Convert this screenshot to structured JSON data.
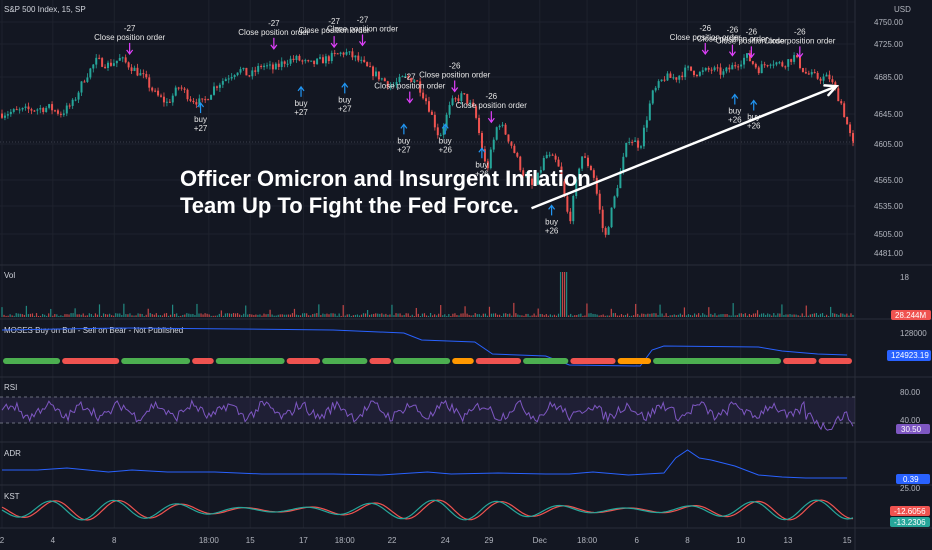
{
  "header": {
    "symbol": "S&P 500 Index, 15, SP"
  },
  "headline": [
    "Officer Omicron and Insurgent Inflation",
    "Team Up To Fight the Fed Force."
  ],
  "colors": {
    "bg": "#131722",
    "up": "#26a69a",
    "down": "#ef5350",
    "rsi": "#7e57c2",
    "adr": "#2962ff",
    "moses": "#2962ff"
  },
  "chart_data": [
    {
      "type": "candlestick",
      "title": "S&P 500 Index, 15, SP",
      "y_unit": "USD",
      "ylim": [
        4481,
        4760
      ],
      "y_ticks": [
        4750,
        4725,
        4685,
        4645,
        4605,
        4565,
        4535,
        4505,
        4481
      ],
      "y_tick_labels": [
        "4750.00",
        "4725.00",
        "4685.00",
        "4645.00",
        "4605.00",
        "4565.00",
        "4535.00",
        "4505.00",
        "4481.00"
      ],
      "x_ticks": [
        "2",
        "4",
        "8",
        "18:00",
        "15",
        "17",
        "18:00",
        "22",
        "24",
        "29",
        "Dec",
        "18:00",
        "6",
        "8",
        "10",
        "13",
        "15"
      ],
      "price_path": [
        [
          0,
          4648
        ],
        [
          2,
          4652
        ],
        [
          4,
          4655
        ],
        [
          5,
          4648
        ],
        [
          6,
          4660
        ],
        [
          7,
          4690
        ],
        [
          8,
          4710
        ],
        [
          9,
          4705
        ],
        [
          10,
          4712
        ],
        [
          11,
          4702
        ],
        [
          12,
          4690
        ],
        [
          13,
          4670
        ],
        [
          14,
          4660
        ],
        [
          15,
          4680
        ],
        [
          16,
          4665
        ],
        [
          17,
          4660
        ],
        [
          18,
          4680
        ],
        [
          19,
          4690
        ],
        [
          20,
          4700
        ],
        [
          21,
          4692
        ],
        [
          22,
          4705
        ],
        [
          23,
          4700
        ],
        [
          24,
          4710
        ],
        [
          25,
          4712
        ],
        [
          26,
          4705
        ],
        [
          27,
          4710
        ],
        [
          28,
          4715
        ],
        [
          29,
          4720
        ],
        [
          30,
          4712
        ],
        [
          31,
          4700
        ],
        [
          32,
          4690
        ],
        [
          33,
          4680
        ],
        [
          34,
          4690
        ],
        [
          35,
          4688
        ],
        [
          36,
          4660
        ],
        [
          37,
          4620
        ],
        [
          38,
          4660
        ],
        [
          39,
          4670
        ],
        [
          40,
          4650
        ],
        [
          41,
          4580
        ],
        [
          42,
          4640
        ],
        [
          43,
          4615
        ],
        [
          44,
          4580
        ],
        [
          45,
          4560
        ],
        [
          46,
          4600
        ],
        [
          47,
          4590
        ],
        [
          48,
          4520
        ],
        [
          49,
          4600
        ],
        [
          50,
          4580
        ],
        [
          51,
          4500
        ],
        [
          52,
          4560
        ],
        [
          53,
          4620
        ],
        [
          54,
          4610
        ],
        [
          55,
          4670
        ],
        [
          56,
          4690
        ],
        [
          57,
          4690
        ],
        [
          58,
          4700
        ],
        [
          59,
          4695
        ],
        [
          60,
          4700
        ],
        [
          61,
          4695
        ],
        [
          62,
          4705
        ],
        [
          63,
          4715
        ],
        [
          64,
          4700
        ],
        [
          65,
          4710
        ],
        [
          66,
          4705
        ],
        [
          67,
          4715
        ],
        [
          68,
          4695
        ],
        [
          69,
          4690
        ],
        [
          70,
          4690
        ],
        [
          71,
          4660
        ],
        [
          72,
          4610
        ]
      ],
      "annotations": [
        {
          "t": 10.8,
          "price": 4712,
          "kind": "sell",
          "lines": [
            "-27",
            "Close position order"
          ]
        },
        {
          "t": 16.8,
          "price": 4665,
          "kind": "buy",
          "lines": [
            "buy",
            "+27"
          ]
        },
        {
          "t": 23.0,
          "price": 4718,
          "kind": "sell",
          "lines": [
            "-27",
            "Close position order"
          ]
        },
        {
          "t": 25.3,
          "price": 4684,
          "kind": "buy",
          "lines": [
            "buy",
            "+27"
          ]
        },
        {
          "t": 28.1,
          "price": 4720,
          "kind": "sell",
          "lines": [
            "-27",
            "Close position order"
          ]
        },
        {
          "t": 29.0,
          "price": 4688,
          "kind": "buy",
          "lines": [
            "buy",
            "+27"
          ]
        },
        {
          "t": 30.5,
          "price": 4722,
          "kind": "sell",
          "lines": [
            "-27",
            "Close position order"
          ]
        },
        {
          "t": 34.5,
          "price": 4655,
          "kind": "sell",
          "lines": [
            "-27",
            "Close position order"
          ]
        },
        {
          "t": 34.0,
          "price": 4640,
          "kind": "buy",
          "lines": [
            "buy",
            "+27"
          ]
        },
        {
          "t": 38.3,
          "price": 4668,
          "kind": "sell",
          "lines": [
            "-26",
            "Close position order"
          ]
        },
        {
          "t": 37.5,
          "price": 4640,
          "kind": "buy",
          "lines": [
            "buy",
            "+26"
          ]
        },
        {
          "t": 41.4,
          "price": 4632,
          "kind": "sell",
          "lines": [
            "-26",
            "Close position order"
          ]
        },
        {
          "t": 40.6,
          "price": 4612,
          "kind": "buy",
          "lines": [
            "buy",
            "+26"
          ]
        },
        {
          "t": 46.5,
          "price": 4545,
          "kind": "buy",
          "lines": [
            "buy",
            "+26"
          ]
        },
        {
          "t": 59.5,
          "price": 4712,
          "kind": "sell",
          "lines": [
            "-26",
            "Close position order"
          ]
        },
        {
          "t": 61.8,
          "price": 4710,
          "kind": "sell",
          "lines": [
            "-26",
            "Close position order"
          ]
        },
        {
          "t": 63.4,
          "price": 4708,
          "kind": "sell",
          "lines": [
            "-26",
            "Close position order"
          ]
        },
        {
          "t": 67.5,
          "price": 4708,
          "kind": "sell",
          "lines": [
            "-26",
            "Close position order"
          ]
        },
        {
          "t": 62.0,
          "price": 4675,
          "kind": "buy",
          "lines": [
            "buy",
            "+26"
          ]
        },
        {
          "t": 63.6,
          "price": 4668,
          "kind": "buy",
          "lines": [
            "buy",
            "+26"
          ]
        }
      ],
      "trend_arrow": {
        "from": [
          44.8,
          4537
        ],
        "to": [
          70.6,
          4680
        ]
      }
    },
    {
      "type": "bar",
      "title": "Vol",
      "y_tick_label": "18",
      "last_value_label": "28.244M"
    },
    {
      "type": "line",
      "title": "MOSES Buy on Bull - Sell on Bear - Not Published",
      "y_tick_label": "128000",
      "last_value_label": "124923.19",
      "dot_segments": [
        {
          "from": 0,
          "to": 5,
          "color": "green"
        },
        {
          "from": 5,
          "to": 10,
          "color": "red"
        },
        {
          "from": 10,
          "to": 16,
          "color": "green"
        },
        {
          "from": 16,
          "to": 18,
          "color": "red"
        },
        {
          "from": 18,
          "to": 24,
          "color": "green"
        },
        {
          "from": 24,
          "to": 27,
          "color": "red"
        },
        {
          "from": 27,
          "to": 31,
          "color": "green"
        },
        {
          "from": 31,
          "to": 33,
          "color": "red"
        },
        {
          "from": 33,
          "to": 38,
          "color": "green"
        },
        {
          "from": 38,
          "to": 40,
          "color": "orange"
        },
        {
          "from": 40,
          "to": 44,
          "color": "red"
        },
        {
          "from": 44,
          "to": 48,
          "color": "green"
        },
        {
          "from": 48,
          "to": 52,
          "color": "red"
        },
        {
          "from": 52,
          "to": 55,
          "color": "orange"
        },
        {
          "from": 55,
          "to": 66,
          "color": "green"
        },
        {
          "from": 66,
          "to": 69,
          "color": "red"
        },
        {
          "from": 69,
          "to": 72,
          "color": "red"
        }
      ]
    },
    {
      "type": "line",
      "title": "RSI",
      "ylim": [
        0,
        100
      ],
      "y_tick_labels": [
        "80.00",
        "40.00"
      ],
      "last_value_label": "30.50",
      "band": [
        30,
        70
      ]
    },
    {
      "type": "line",
      "title": "ADR",
      "y_tick_label": "25.00",
      "last_value_label": "0.39"
    },
    {
      "type": "line",
      "title": "KST",
      "last_value_labels": [
        "-12.6056",
        "-13.2306"
      ]
    }
  ]
}
